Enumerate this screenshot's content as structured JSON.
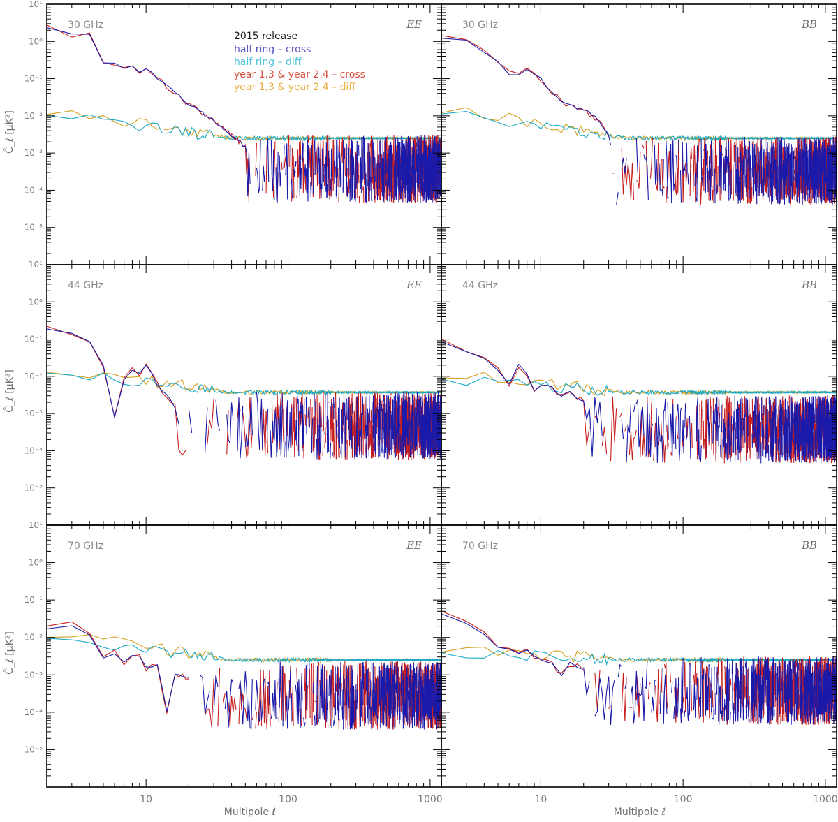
{
  "chart_data": {
    "type": "line",
    "layout": "3x2 grid",
    "xlabel": "Multipole ℓ",
    "ylabel": "Ĉ_ℓ [μK²]",
    "xscale": "log",
    "yscale": "log",
    "xlim": [
      2,
      1200
    ],
    "ylim": [
      1e-06,
      10
    ],
    "xticks": [
      {
        "value": 10,
        "label": "10"
      },
      {
        "value": 100,
        "label": "100"
      },
      {
        "value": 1000,
        "label": "1000"
      }
    ],
    "yticks": [
      {
        "value": 10,
        "label": "10¹"
      },
      {
        "value": 1,
        "label": "10⁰"
      },
      {
        "value": 0.1,
        "label": "10⁻¹"
      },
      {
        "value": 0.01,
        "label": "10⁻²"
      },
      {
        "value": 0.001,
        "label": "10⁻³"
      },
      {
        "value": 0.0001,
        "label": "10⁻⁴"
      },
      {
        "value": 1e-05,
        "label": "10⁻⁵"
      }
    ],
    "legend": {
      "title": "2015 release",
      "placement": "top-center of top-left panel",
      "entries": [
        {
          "name": "half ring – cross",
          "color": "#5a56c8"
        },
        {
          "name": "half ring – diff",
          "color": "#4fc3dc"
        },
        {
          "name": "year 1,3 & year 2,4 – cross",
          "color": "#d2503e"
        },
        {
          "name": "year 1,3 & year 2,4 – diff",
          "color": "#e8b040"
        }
      ]
    },
    "series_colors": {
      "hr_cross": "#1a1aaa",
      "hr_diff": "#1aaac8",
      "yr_cross": "#c81e1e",
      "yr_diff": "#d2a01e"
    },
    "panels": [
      {
        "freq": "30 GHz",
        "spectrum": "EE",
        "cross_low": {
          "x": [
            2,
            3,
            4,
            5,
            6,
            7,
            8,
            9,
            10,
            12,
            15,
            20,
            25,
            30,
            40,
            50
          ],
          "y": [
            2.5,
            1.5,
            1.6,
            0.25,
            0.25,
            0.2,
            0.22,
            0.15,
            0.2,
            0.1,
            0.05,
            0.02,
            0.012,
            0.007,
            0.003,
            0.0015
          ]
        },
        "diff_level": 0.0025,
        "diff_start": 0.011,
        "noise_center": 0.0002
      },
      {
        "freq": "30 GHz",
        "spectrum": "BB",
        "cross_low": {
          "x": [
            2,
            3,
            4,
            5,
            6,
            7,
            8,
            10,
            12,
            15,
            20,
            25,
            30
          ],
          "y": [
            1.3,
            1.0,
            0.55,
            0.28,
            0.14,
            0.13,
            0.18,
            0.1,
            0.04,
            0.02,
            0.015,
            0.008,
            0.003
          ]
        },
        "diff_level": 0.0025,
        "diff_start": 0.012,
        "noise_center": 0.00018
      },
      {
        "freq": "44 GHz",
        "spectrum": "EE",
        "cross_low": {
          "x": [
            2,
            3,
            4,
            5,
            6,
            7,
            8,
            9,
            10,
            11,
            12,
            14,
            16
          ],
          "y": [
            0.2,
            0.13,
            0.08,
            0.02,
            0.0008,
            0.008,
            0.015,
            0.012,
            0.02,
            0.012,
            0.006,
            0.003,
            0.0015
          ]
        },
        "diff_level": 0.0037,
        "diff_start": 0.013,
        "noise_center": 0.00025
      },
      {
        "freq": "44 GHz",
        "spectrum": "BB",
        "cross_low": {
          "x": [
            2,
            3,
            4,
            5,
            6,
            7,
            8,
            9,
            10,
            12,
            14,
            16,
            20
          ],
          "y": [
            0.09,
            0.05,
            0.03,
            0.015,
            0.006,
            0.02,
            0.012,
            0.004,
            0.006,
            0.005,
            0.003,
            0.004,
            0.002
          ]
        },
        "diff_level": 0.0037,
        "diff_start": 0.009,
        "noise_center": 0.0002
      },
      {
        "freq": "70 GHz",
        "spectrum": "EE",
        "cross_low": {
          "x": [
            2,
            3,
            4,
            5,
            6,
            7,
            8,
            9,
            10,
            12,
            14,
            16,
            20
          ],
          "y": [
            0.018,
            0.022,
            0.012,
            0.003,
            0.004,
            0.002,
            0.0035,
            0.003,
            0.0015,
            0.002,
            0.0001,
            0.001,
            0.0008
          ]
        },
        "diff_level": 0.0025,
        "diff_start": 0.01,
        "noise_center": 0.00015
      },
      {
        "freq": "70 GHz",
        "spectrum": "BB",
        "cross_low": {
          "x": [
            2,
            3,
            4,
            5,
            6,
            7,
            8,
            9,
            10,
            12,
            14,
            16,
            20
          ],
          "y": [
            0.045,
            0.025,
            0.013,
            0.006,
            0.005,
            0.004,
            0.005,
            0.003,
            0.0025,
            0.002,
            0.001,
            0.002,
            0.0015
          ]
        },
        "diff_level": 0.0025,
        "diff_start": 0.004,
        "noise_center": 0.0002
      }
    ]
  }
}
